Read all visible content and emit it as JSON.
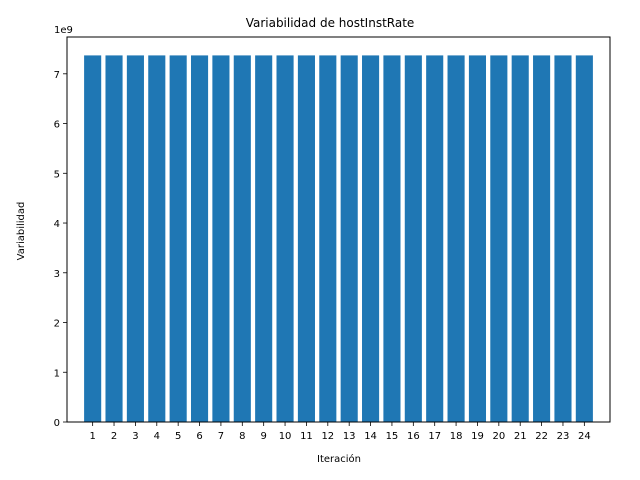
{
  "chart_data": {
    "type": "bar",
    "title": "Variabilidad de hostInstRate",
    "xlabel": "Iteración",
    "ylabel": "Variabilidad",
    "y_offset_label": "1e9",
    "categories": [
      "1",
      "2",
      "3",
      "4",
      "5",
      "6",
      "7",
      "8",
      "9",
      "10",
      "11",
      "12",
      "13",
      "14",
      "15",
      "16",
      "17",
      "18",
      "19",
      "20",
      "21",
      "22",
      "23",
      "24"
    ],
    "values": [
      7370000000,
      7370000000,
      7370000000,
      7370000000,
      7370000000,
      7370000000,
      7370000000,
      7370000000,
      7370000000,
      7370000000,
      7370000000,
      7370000000,
      7370000000,
      7370000000,
      7370000000,
      7370000000,
      7370000000,
      7370000000,
      7370000000,
      7370000000,
      7370000000,
      7370000000,
      7370000000,
      7370000000
    ],
    "ylim": [
      0,
      7740000000
    ],
    "yticks": [
      0,
      1,
      2,
      3,
      4,
      5,
      6,
      7
    ],
    "grid": false,
    "bar_color": "#1f77b4"
  }
}
